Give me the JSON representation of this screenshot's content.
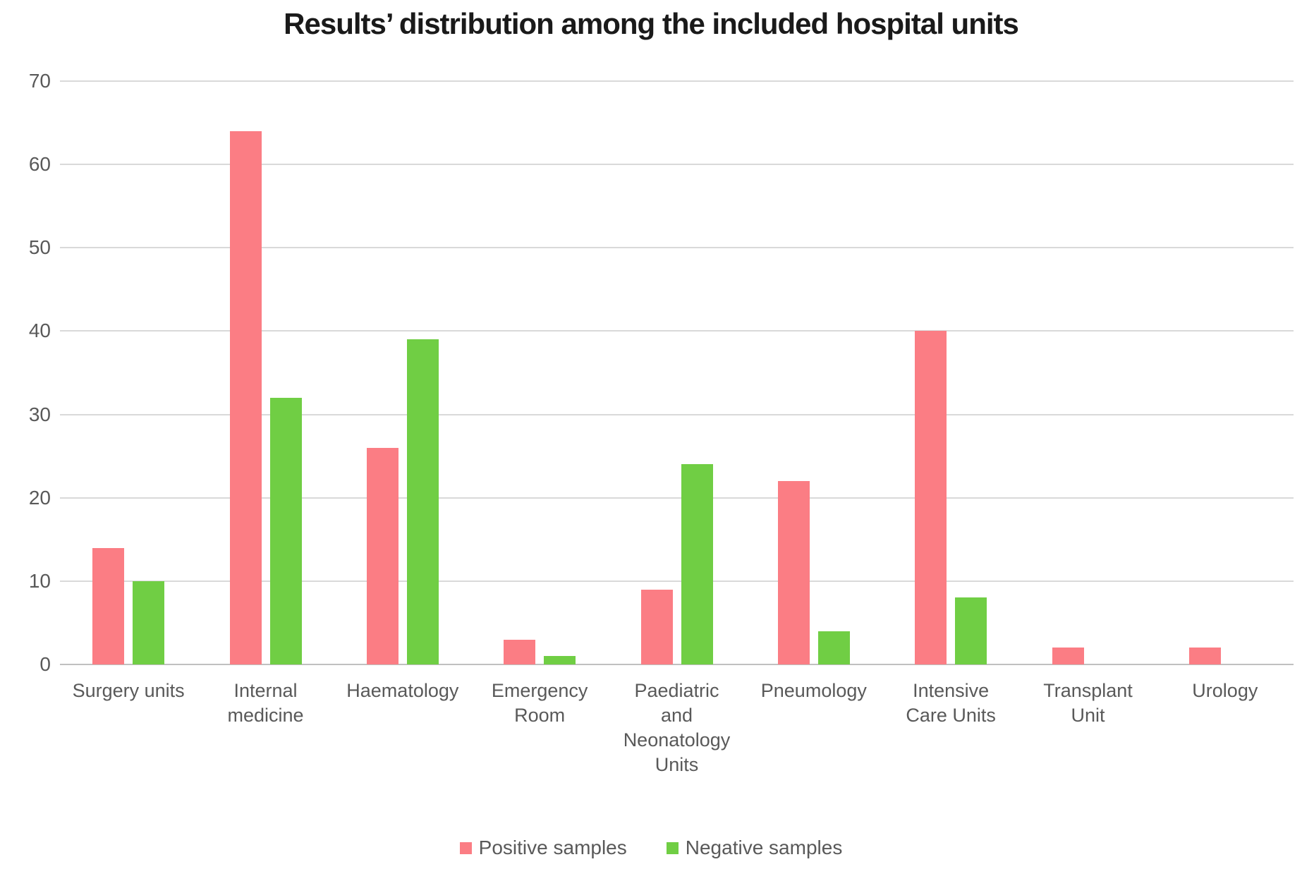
{
  "title": "Results’ distribution among the included hospital units",
  "colors": {
    "positive": "#FB7D84",
    "negative": "#70CE44",
    "grid": "#D9D9D9",
    "baseline": "#C0C0C0",
    "label_text": "#595959",
    "title_text": "#1A1A1A",
    "background": "#FFFFFF"
  },
  "legend": {
    "items": [
      {
        "label": "Positive samples",
        "color": "#FB7D84"
      },
      {
        "label": "Negative samples",
        "color": "#70CE44"
      }
    ]
  },
  "chart_data": {
    "type": "bar",
    "title": "Results’ distribution among the included hospital units",
    "categories": [
      "Surgery units",
      "Internal medicine",
      "Haematology",
      "Emergency Room",
      "Paediatric and Neonatology Units",
      "Pneumology",
      "Intensive Care Units",
      "Transplant Unit",
      "Urology"
    ],
    "category_label_lines": [
      [
        "Surgery units"
      ],
      [
        "Internal",
        "medicine"
      ],
      [
        "Haematology"
      ],
      [
        "Emergency",
        "Room"
      ],
      [
        "Paediatric",
        "and",
        "Neonatology",
        "Units"
      ],
      [
        "Pneumology"
      ],
      [
        "Intensive",
        "Care Units"
      ],
      [
        "Transplant",
        "Unit"
      ],
      [
        "Urology"
      ]
    ],
    "series": [
      {
        "name": "Positive samples",
        "color": "#FB7D84",
        "values": [
          14,
          64,
          26,
          3,
          9,
          22,
          40,
          2,
          2
        ]
      },
      {
        "name": "Negative samples",
        "color": "#70CE44",
        "values": [
          10,
          32,
          39,
          1,
          24,
          4,
          8,
          0,
          0
        ]
      }
    ],
    "xlabel": "",
    "ylabel": "",
    "ylim": [
      0,
      70
    ],
    "yticks": [
      0,
      10,
      20,
      30,
      40,
      50,
      60,
      70
    ],
    "grid": true,
    "legend_position": "bottom"
  }
}
